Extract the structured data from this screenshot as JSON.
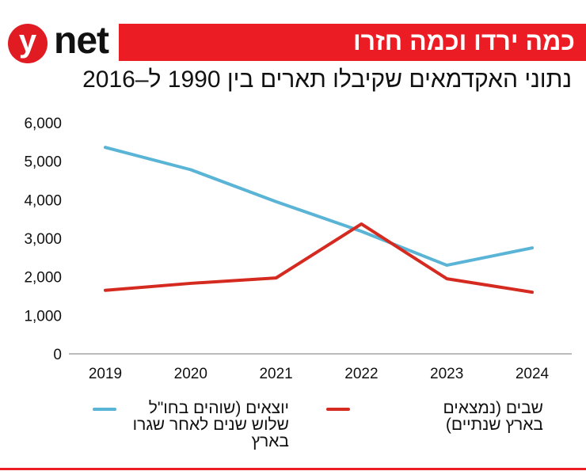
{
  "brand": {
    "logo_letter": "y",
    "logo_text": "net"
  },
  "header": {
    "title": "כמה ירדו וכמה חזרו",
    "subtitle": "נתוני האקדמאים שקיבלו תארים בין 1990 ל–2016"
  },
  "colors": {
    "brand_red": "#ec1c24",
    "series_blue": "#5ab4d6",
    "series_red": "#d42a20"
  },
  "chart_data": {
    "type": "line",
    "title": "נתוני האקדמאים שקיבלו תארים בין 1990 ל–2016",
    "categories": [
      "2019",
      "2020",
      "2021",
      "2022",
      "2023",
      "2024"
    ],
    "ylim": [
      0,
      6000
    ],
    "yticks": [
      "0",
      "1,000",
      "2,000",
      "3,000",
      "4,000",
      "5,000",
      "6,000"
    ],
    "ytick_values": [
      0,
      1000,
      2000,
      3000,
      4000,
      5000,
      6000
    ],
    "grid": false,
    "legend_position": "bottom",
    "series": [
      {
        "name": "יוצאים (שוהים בחו\"ל שלוש שנים לאחר שגרו בארץ",
        "color": "#5ab4d6",
        "values": [
          5360,
          4780,
          3950,
          3180,
          2300,
          2750
        ]
      },
      {
        "name": "שבים (נמצאים בארץ שנתיים)",
        "color": "#d42a20",
        "values": [
          1650,
          1830,
          1970,
          3370,
          1950,
          1600
        ]
      }
    ]
  }
}
